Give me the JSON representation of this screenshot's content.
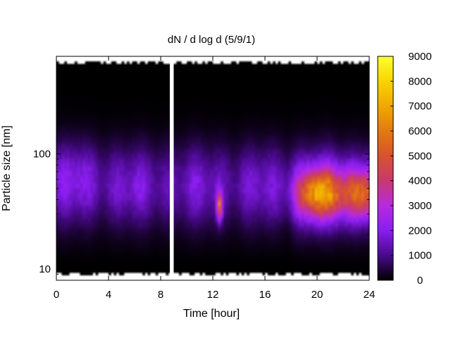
{
  "chart_data": {
    "type": "heatmap",
    "title": "dN / d log d (5/9/1)",
    "xlabel": "Time [hour]",
    "ylabel": "Particle size [nm]",
    "x_range": [
      0,
      24
    ],
    "x_ticks": [
      0,
      4,
      8,
      12,
      16,
      20,
      24
    ],
    "y_scale": "log",
    "y_range_nm": [
      8,
      700
    ],
    "y_ticks": [
      10,
      100
    ],
    "colorbar": {
      "range": [
        0,
        9000
      ],
      "ticks": [
        0,
        1000,
        2000,
        3000,
        4000,
        5000,
        6000,
        7000,
        8000,
        9000
      ],
      "colors": [
        "#000000",
        "#4a0a8e",
        "#8a1ef0",
        "#b82ae0",
        "#c83a6e",
        "#d85230",
        "#e47a10",
        "#f0a800",
        "#f8d400",
        "#ffff30"
      ]
    },
    "data_gap_hours": [
      8.7,
      9.0
    ],
    "features": [
      {
        "center_hour": 1.5,
        "center_size_nm": 70,
        "peak_value": 2200
      },
      {
        "center_hour": 5.5,
        "center_size_nm": 50,
        "peak_value": 1800
      },
      {
        "center_hour": 12.5,
        "center_size_nm": 35,
        "peak_value": 6500
      },
      {
        "center_hour": 20.2,
        "center_size_nm": 45,
        "peak_value": 6500
      },
      {
        "center_hour": 23.5,
        "center_size_nm": 45,
        "peak_value": 5200
      }
    ]
  }
}
